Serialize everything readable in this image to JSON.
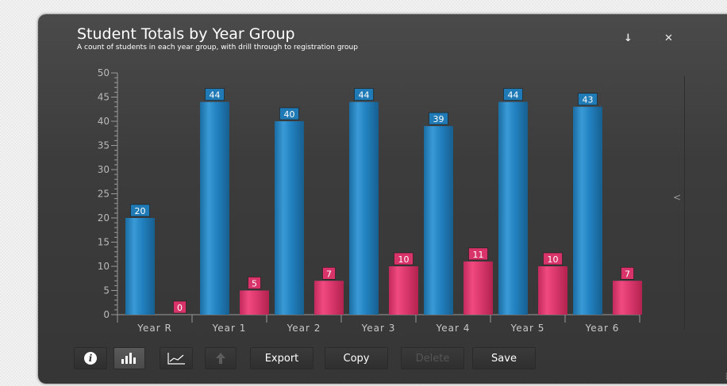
{
  "widget": {
    "title": "Student Totals by Year Group",
    "subtitle": "A count of students in each year group, with drill through to registration group",
    "down_icon": "↓",
    "close_icon": "✕",
    "side_toggle": "<"
  },
  "toolbar": {
    "info_icon": "i",
    "export_label": "Export",
    "copy_label": "Copy",
    "delete_label": "Delete",
    "save_label": "Save"
  },
  "colors": {
    "blue": "#1f7ab5",
    "pink": "#d9346a",
    "axis": "#9a9a9a"
  },
  "chart_data": {
    "type": "bar",
    "categories": [
      "Year  R",
      "Year  1",
      "Year  2",
      "Year  3",
      "Year  4",
      "Year  5",
      "Year  6"
    ],
    "series": [
      {
        "values": [
          20,
          44,
          40,
          44,
          39,
          44,
          43
        ]
      },
      {
        "values": [
          0,
          5,
          7,
          10,
          11,
          10,
          7
        ]
      }
    ],
    "ylim": [
      0,
      50
    ],
    "yticks": [
      0,
      5,
      10,
      15,
      20,
      25,
      30,
      35,
      40,
      45,
      50
    ],
    "data_labels": true,
    "grid": false,
    "legend": "none"
  }
}
